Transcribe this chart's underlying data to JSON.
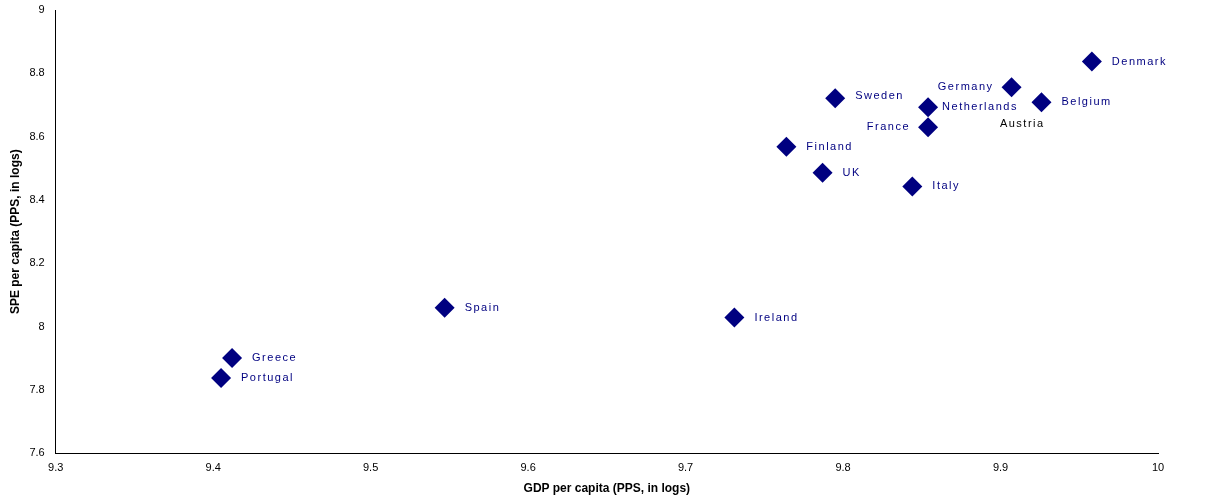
{
  "chart_data": {
    "type": "scatter",
    "xlabel": "GDP per capita (PPS, in logs)",
    "ylabel": "SPE per capita (PPS, in logs)",
    "xlim": [
      9.3,
      10
    ],
    "xticks": [
      9.3,
      9.4,
      9.5,
      9.6,
      9.7,
      9.8,
      9.9,
      10
    ],
    "ylim": [
      7.6,
      9
    ],
    "yticks": [
      7.6,
      7.8,
      8,
      8.2,
      8.4,
      8.6,
      8.8,
      9
    ],
    "annotations": [
      {
        "text": "Austria",
        "x": 9.925,
        "y": 8.709
      }
    ],
    "grid": false,
    "legend": false,
    "marker": "diamond",
    "series": [
      {
        "name": "Denmark",
        "color": "#000080",
        "x": [
          9.958
        ],
        "values": [
          8.837
        ]
      },
      {
        "name": "Germany",
        "color": "#000080",
        "x": [
          9.907
        ],
        "values": [
          8.756
        ]
      },
      {
        "name": "Belgium",
        "color": "#000080",
        "x": [
          9.926
        ],
        "values": [
          8.709
        ]
      },
      {
        "name": "Sweden",
        "color": "#000080",
        "x": [
          9.795
        ],
        "values": [
          8.721
        ]
      },
      {
        "name": "Netherlands",
        "color": "#000080",
        "x": [
          9.854
        ],
        "values": [
          8.693
        ]
      },
      {
        "name": "France",
        "color": "#000080",
        "x": [
          9.854
        ],
        "values": [
          8.63
        ]
      },
      {
        "name": "Finland",
        "color": "#000080",
        "x": [
          9.764
        ],
        "values": [
          8.568
        ]
      },
      {
        "name": "UK",
        "color": "#000080",
        "x": [
          9.787
        ],
        "values": [
          8.486
        ]
      },
      {
        "name": "Italy",
        "color": "#000080",
        "x": [
          9.844
        ],
        "values": [
          8.443
        ]
      },
      {
        "name": "Spain",
        "color": "#000080",
        "x": [
          9.547
        ],
        "values": [
          8.06
        ]
      },
      {
        "name": "Ireland",
        "color": "#000080",
        "x": [
          9.731
        ],
        "values": [
          8.029
        ]
      },
      {
        "name": "Greece",
        "color": "#000080",
        "x": [
          9.412
        ],
        "values": [
          7.901
        ]
      },
      {
        "name": "Portugal",
        "color": "#000080",
        "x": [
          9.405
        ],
        "values": [
          7.838
        ]
      }
    ]
  }
}
